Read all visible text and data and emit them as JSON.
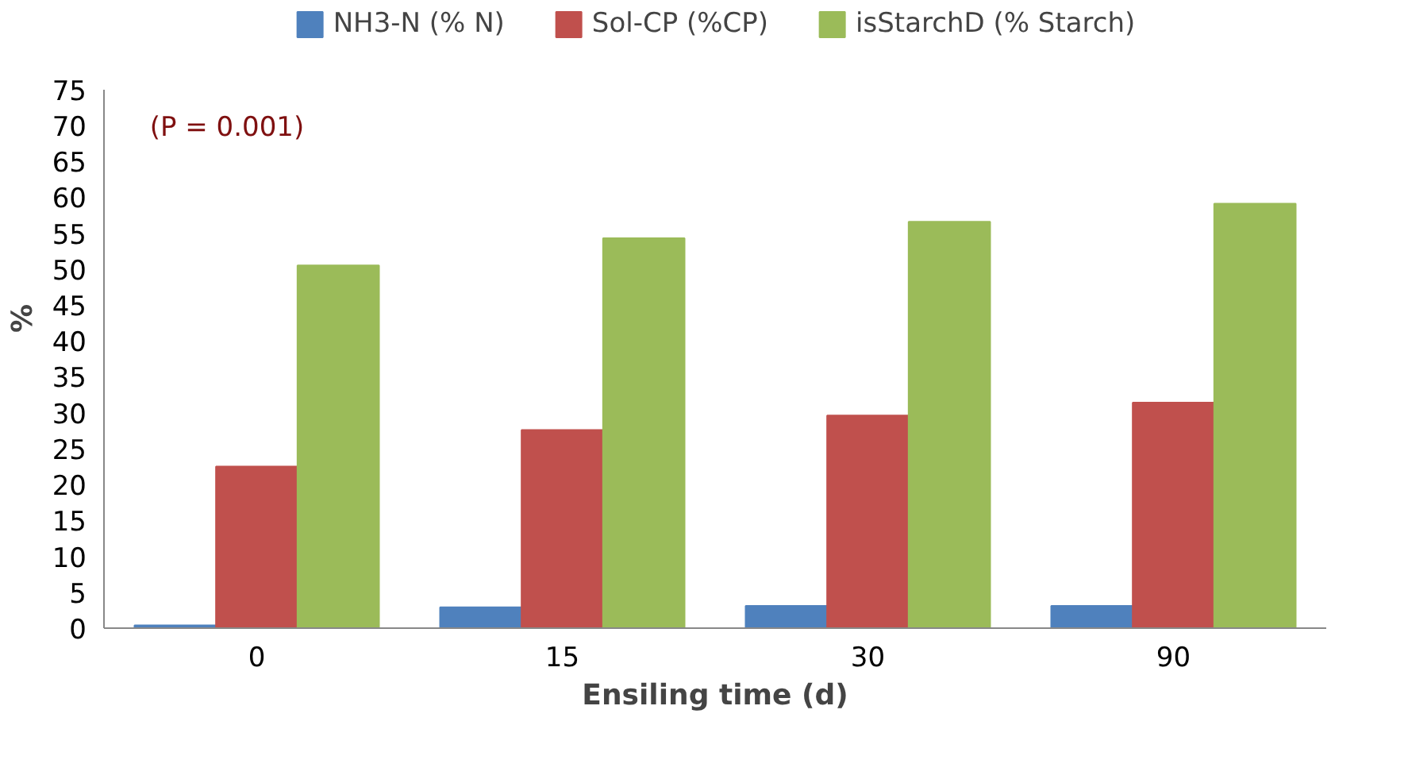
{
  "chart_data": {
    "type": "bar",
    "xlabel": "Ensiling time (d)",
    "ylabel": "%",
    "categories": [
      "0",
      "15",
      "30",
      "90"
    ],
    "series": [
      {
        "name": "NH3-N (% N)",
        "color": "#4f81bd",
        "values": [
          0.4,
          2.9,
          3.1,
          3.1
        ]
      },
      {
        "name": "Sol-CP (%CP)",
        "color": "#c0504d",
        "values": [
          22.5,
          27.6,
          29.6,
          31.4
        ]
      },
      {
        "name": "isStarchD (% Starch)",
        "color": "#9bbb59",
        "values": [
          50.5,
          54.3,
          56.6,
          59.1
        ]
      }
    ],
    "ylim": [
      0,
      75
    ],
    "yticks": [
      0,
      5,
      10,
      15,
      20,
      25,
      30,
      35,
      40,
      45,
      50,
      55,
      60,
      65,
      70,
      75
    ],
    "annotations": [
      "(P = 0.001)"
    ],
    "legend": "top",
    "grid": false
  }
}
